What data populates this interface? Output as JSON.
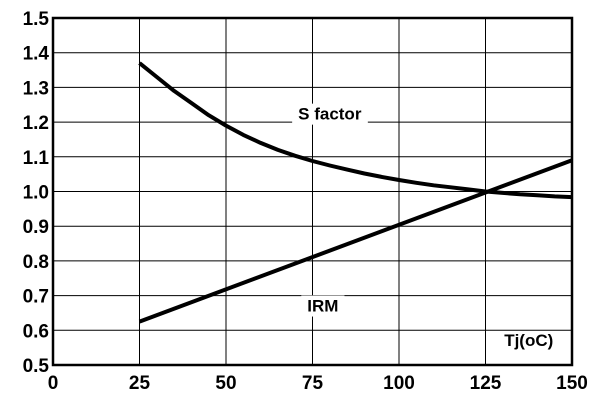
{
  "chart_data": {
    "type": "line",
    "title": "",
    "xlabel": "Tj(oC)",
    "ylabel": "",
    "xlim": [
      0,
      150
    ],
    "ylim": [
      0.5,
      1.5
    ],
    "grid": true,
    "x_ticks": [
      "0",
      "25",
      "50",
      "75",
      "100",
      "125",
      "150"
    ],
    "y_ticks": [
      "0.5",
      "0.6",
      "0.7",
      "0.8",
      "0.9",
      "1.0",
      "1.1",
      "1.2",
      "1.3",
      "1.4",
      "1.5"
    ],
    "series": [
      {
        "name": "S factor",
        "x": [
          25,
          30,
          35,
          40,
          45,
          50,
          55,
          60,
          65,
          70,
          75,
          80,
          85,
          90,
          95,
          100,
          105,
          110,
          115,
          120,
          125,
          130,
          135,
          140,
          145,
          150
        ],
        "y": [
          1.37,
          1.33,
          1.29,
          1.255,
          1.22,
          1.19,
          1.163,
          1.14,
          1.12,
          1.103,
          1.088,
          1.075,
          1.063,
          1.052,
          1.042,
          1.033,
          1.025,
          1.018,
          1.012,
          1.006,
          1.0,
          0.996,
          0.992,
          0.989,
          0.986,
          0.984
        ],
        "label_at": [
          80,
          1.22
        ]
      },
      {
        "name": "IRM",
        "x": [
          25,
          150
        ],
        "y": [
          0.625,
          1.09
        ],
        "label_at": [
          78,
          0.667
        ]
      }
    ]
  }
}
